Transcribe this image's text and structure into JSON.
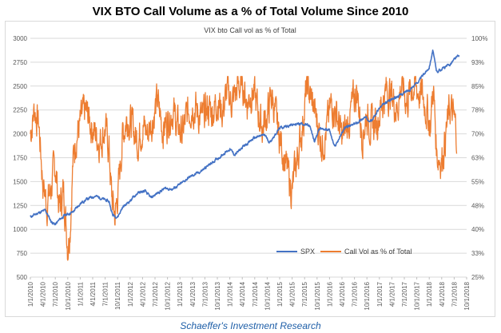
{
  "page": {
    "title": "VIX BTO Call Volume as a % of Total Volume Since 2010",
    "footer": "Schaeffer's Investment Research"
  },
  "colors": {
    "spx": "#4472c4",
    "call_vol": "#ed7d31",
    "grid": "#d9d9d9",
    "axis_text": "#595959"
  },
  "chart_data": {
    "type": "line",
    "title": "VIX bto Call vol as % of Total",
    "x_labels": [
      "1/1/2010",
      "4/1/2010",
      "7/1/2010",
      "10/1/2010",
      "1/1/2011",
      "4/1/2011",
      "7/1/2011",
      "10/1/2011",
      "1/1/2012",
      "4/1/2012",
      "7/1/2012",
      "10/1/2012",
      "1/1/2013",
      "4/1/2013",
      "7/1/2013",
      "10/1/2013",
      "1/1/2014",
      "4/1/2014",
      "7/1/2014",
      "10/1/2014",
      "1/1/2015",
      "4/1/2015",
      "7/1/2015",
      "10/1/2015",
      "1/1/2016",
      "4/1/2016",
      "7/1/2016",
      "10/1/2016",
      "1/1/2017",
      "4/1/2017",
      "7/1/2017",
      "10/1/2017",
      "1/1/2018",
      "4/1/2018",
      "7/1/2018",
      "10/1/2018"
    ],
    "y_left": {
      "min": 500,
      "max": 3000,
      "ticks": [
        500,
        750,
        1000,
        1250,
        1500,
        1750,
        2000,
        2250,
        2500,
        2750,
        3000
      ]
    },
    "y_right": {
      "min": 25,
      "max": 100,
      "ticks": [
        "25%",
        "33%",
        "40%",
        "48%",
        "55%",
        "63%",
        "70%",
        "78%",
        "85%",
        "93%",
        "100%"
      ]
    },
    "legend": [
      "SPX",
      "Call Vol as % of Total"
    ],
    "series": [
      {
        "name": "SPX",
        "axis": "left",
        "x": [
          2010.0,
          2010.15,
          2010.3,
          2010.42,
          2010.5,
          2010.58,
          2010.7,
          2010.85,
          2011.0,
          2011.15,
          2011.3,
          2011.45,
          2011.58,
          2011.65,
          2011.75,
          2011.85,
          2012.0,
          2012.15,
          2012.3,
          2012.42,
          2012.55,
          2012.7,
          2012.85,
          2013.0,
          2013.2,
          2013.4,
          2013.6,
          2013.8,
          2014.0,
          2014.1,
          2014.3,
          2014.5,
          2014.7,
          2014.8,
          2015.0,
          2015.2,
          2015.45,
          2015.6,
          2015.7,
          2015.8,
          2016.0,
          2016.1,
          2016.3,
          2016.5,
          2016.7,
          2016.85,
          2017.0,
          2017.2,
          2017.4,
          2017.6,
          2017.8,
          2018.0,
          2018.07,
          2018.15,
          2018.25,
          2018.4,
          2018.5,
          2018.6
        ],
        "values": [
          1130,
          1170,
          1200,
          1080,
          1050,
          1100,
          1150,
          1180,
          1270,
          1320,
          1350,
          1320,
          1290,
          1150,
          1130,
          1230,
          1300,
          1380,
          1400,
          1330,
          1380,
          1430,
          1420,
          1470,
          1550,
          1600,
          1680,
          1760,
          1840,
          1780,
          1880,
          1960,
          1990,
          1910,
          2060,
          2090,
          2110,
          2080,
          1920,
          2060,
          2040,
          1860,
          2060,
          2100,
          2170,
          2140,
          2270,
          2350,
          2400,
          2460,
          2560,
          2700,
          2870,
          2650,
          2680,
          2720,
          2780,
          2820
        ]
      },
      {
        "name": "Call Vol as % of Total",
        "axis": "right",
        "x": [
          2010.0,
          2010.08,
          2010.17,
          2010.25,
          2010.33,
          2010.4,
          2010.5,
          2010.58,
          2010.67,
          2010.75,
          2010.8,
          2010.85,
          2010.92,
          2011.0,
          2011.1,
          2011.2,
          2011.3,
          2011.4,
          2011.5,
          2011.58,
          2011.63,
          2011.7,
          2011.78,
          2011.85,
          2011.95,
          2012.05,
          2012.15,
          2012.25,
          2012.35,
          2012.45,
          2012.55,
          2012.65,
          2012.75,
          2012.85,
          2012.95,
          2013.05,
          2013.15,
          2013.25,
          2013.35,
          2013.45,
          2013.55,
          2013.65,
          2013.75,
          2013.85,
          2013.95,
          2014.05,
          2014.15,
          2014.25,
          2014.35,
          2014.45,
          2014.55,
          2014.65,
          2014.75,
          2014.85,
          2014.95,
          2015.05,
          2015.15,
          2015.25,
          2015.35,
          2015.45,
          2015.55,
          2015.65,
          2015.75,
          2015.85,
          2015.95,
          2016.05,
          2016.15,
          2016.25,
          2016.35,
          2016.45,
          2016.55,
          2016.65,
          2016.75,
          2016.85,
          2016.95,
          2017.05,
          2017.15,
          2017.25,
          2017.35,
          2017.45,
          2017.55,
          2017.65,
          2017.75,
          2017.85,
          2017.95,
          2018.02,
          2018.08,
          2018.15,
          2018.25,
          2018.35,
          2018.42,
          2018.5,
          2018.55
        ],
        "values": [
          70,
          78,
          73,
          55,
          48,
          52,
          60,
          47,
          52,
          35,
          42,
          60,
          70,
          73,
          77,
          74,
          70,
          68,
          72,
          65,
          50,
          44,
          55,
          70,
          76,
          72,
          68,
          73,
          70,
          75,
          80,
          72,
          74,
          78,
          72,
          70,
          76,
          80,
          77,
          74,
          78,
          77,
          81,
          77,
          83,
          80,
          84,
          86,
          80,
          84,
          78,
          72,
          76,
          82,
          72,
          66,
          58,
          52,
          62,
          72,
          85,
          80,
          74,
          67,
          72,
          80,
          76,
          68,
          72,
          78,
          84,
          70,
          76,
          72,
          74,
          80,
          84,
          82,
          78,
          86,
          80,
          85,
          84,
          82,
          78,
          72,
          85,
          64,
          62,
          72,
          78,
          74,
          70
        ]
      }
    ]
  }
}
